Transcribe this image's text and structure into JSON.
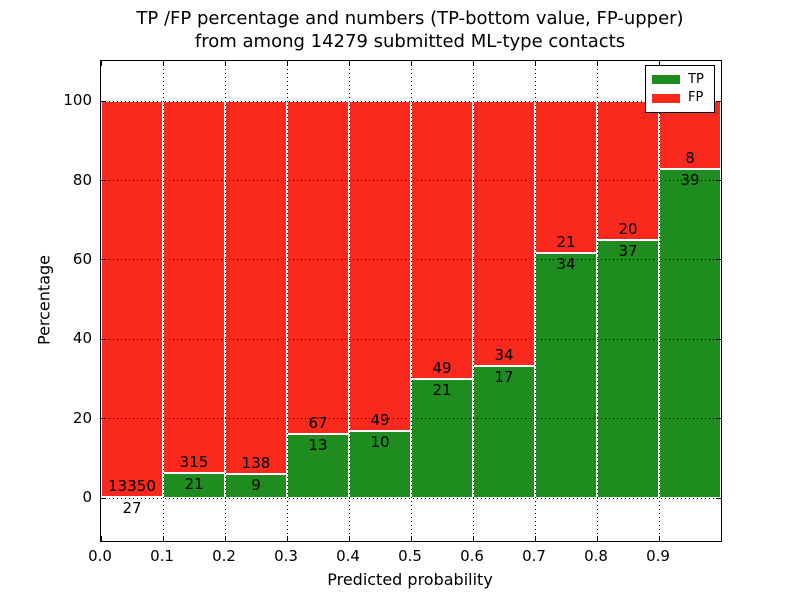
{
  "figure": {
    "title_line1": "TP /FP percentage and numbers (TP-bottom value, FP-upper)",
    "title_line2": "from among 14279 submitted ML-type contacts"
  },
  "chart_data": {
    "type": "bar",
    "stacked": true,
    "title": "TP /FP percentage and numbers (TP-bottom value, FP-upper) from among 14279 submitted ML-type contacts",
    "xlabel": "Predicted probability",
    "ylabel": "Percentage",
    "total_contacts": 14279,
    "grid": true,
    "xlim": [
      0.0,
      1.0
    ],
    "ylim": [
      -10.8,
      110.1
    ],
    "x_tick_labels": [
      "0.0",
      "0.1",
      "0.2",
      "0.3",
      "0.4",
      "0.5",
      "0.6",
      "0.7",
      "0.8",
      "0.9"
    ],
    "y_tick_values": [
      0,
      20,
      40,
      60,
      80,
      100
    ],
    "legend": {
      "position": "upper right",
      "entries": [
        {
          "label": "TP",
          "color": "#1e8c1e"
        },
        {
          "label": "FP",
          "color": "#f9291d"
        }
      ]
    },
    "series": [
      {
        "name": "TP",
        "color": "#1e8c1e",
        "values": [
          27,
          21,
          9,
          13,
          10,
          21,
          17,
          34,
          37,
          39
        ]
      },
      {
        "name": "FP",
        "color": "#f9291d",
        "values": [
          13350,
          315,
          138,
          67,
          49,
          49,
          34,
          21,
          20,
          8
        ]
      }
    ],
    "bins": [
      {
        "range": [
          0.0,
          0.1
        ],
        "tp": 27,
        "fp": 13350,
        "tp_pct": 0.2
      },
      {
        "range": [
          0.1,
          0.2
        ],
        "tp": 21,
        "fp": 315,
        "tp_pct": 6.25
      },
      {
        "range": [
          0.2,
          0.3
        ],
        "tp": 9,
        "fp": 138,
        "tp_pct": 6.12
      },
      {
        "range": [
          0.3,
          0.4
        ],
        "tp": 13,
        "fp": 67,
        "tp_pct": 16.25
      },
      {
        "range": [
          0.4,
          0.5
        ],
        "tp": 10,
        "fp": 49,
        "tp_pct": 16.95
      },
      {
        "range": [
          0.5,
          0.6
        ],
        "tp": 21,
        "fp": 49,
        "tp_pct": 30.0
      },
      {
        "range": [
          0.6,
          0.7
        ],
        "tp": 17,
        "fp": 34,
        "tp_pct": 33.33
      },
      {
        "range": [
          0.7,
          0.8
        ],
        "tp": 34,
        "fp": 21,
        "tp_pct": 61.82
      },
      {
        "range": [
          0.8,
          0.9
        ],
        "tp": 37,
        "fp": 20,
        "tp_pct": 64.91
      },
      {
        "range": [
          0.9,
          1.0
        ],
        "tp": 39,
        "fp": 8,
        "tp_pct": 82.98
      }
    ]
  }
}
